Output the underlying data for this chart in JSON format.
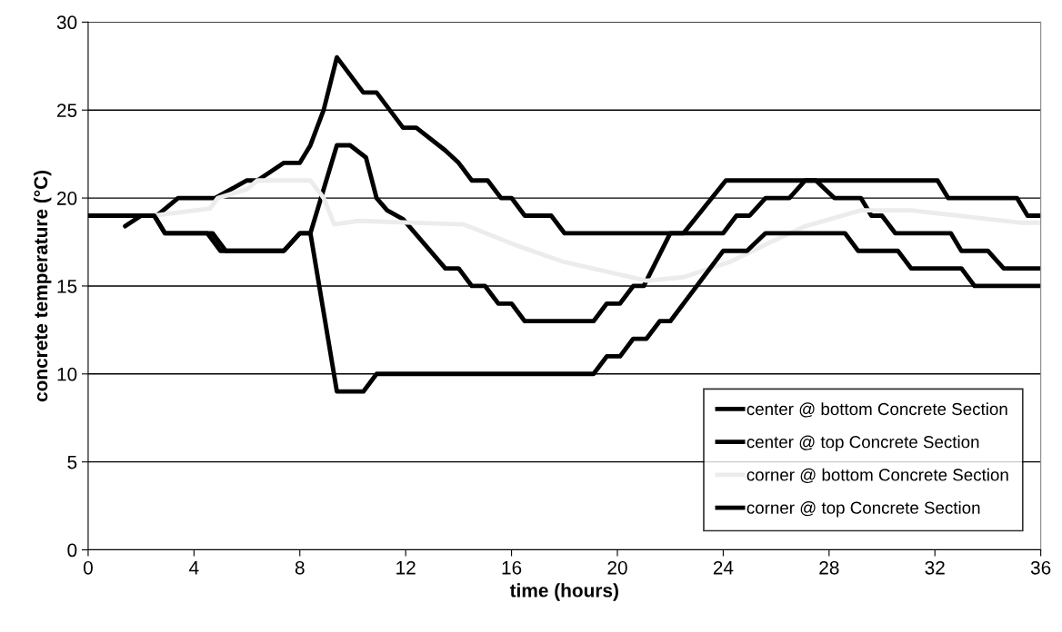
{
  "chart_data": {
    "type": "line",
    "xlabel": "time (hours)",
    "ylabel": "concrete temperature (°C)",
    "xlim": [
      0,
      36
    ],
    "xticks": [
      0,
      4,
      8,
      12,
      16,
      20,
      24,
      28,
      32,
      36
    ],
    "ylim": [
      0,
      30
    ],
    "yticks": [
      0,
      5,
      10,
      15,
      20,
      25,
      30
    ],
    "grid": "y",
    "legend": "bottom right",
    "marker": "none",
    "line_style": "solid",
    "series": [
      {
        "name": "center @ bottom Concrete Section",
        "color": "#000000",
        "x": [
          1.4,
          2.0,
          2.6,
          3.4,
          4.8,
          6.0,
          6.4,
          7.4,
          8.0,
          8.4,
          8.9,
          9.4,
          10.4,
          10.9,
          11.9,
          12.4,
          13.5,
          14.0,
          14.5,
          15.1,
          15.6,
          16.0,
          16.5,
          17.5,
          18.0,
          24.0,
          24.5,
          25.0,
          25.6,
          26.5,
          27.1,
          27.5,
          28.2,
          29.2,
          29.6,
          30.0,
          30.5,
          32.6,
          33.0,
          34.0,
          34.6,
          36.0
        ],
        "values": [
          18.4,
          19,
          19,
          20,
          20,
          21,
          21,
          22,
          22,
          23,
          25,
          28,
          26,
          26,
          24,
          24,
          22.7,
          22,
          21,
          21,
          20,
          20,
          19,
          19,
          18,
          18,
          19,
          19,
          20,
          20,
          21,
          21,
          20,
          20,
          19,
          19,
          18,
          18,
          17,
          17,
          16,
          16
        ]
      },
      {
        "name": "center @ top Concrete Section",
        "color": "#000000",
        "x": [
          0,
          2.5,
          2.9,
          4.5,
          5.0,
          7.4,
          8.0,
          8.4,
          9.4,
          9.9,
          10.5,
          10.9,
          11.3,
          11.9,
          13.5,
          14.0,
          14.5,
          15.0,
          15.5,
          16.0,
          16.5,
          19.1,
          19.6,
          20.1,
          20.6,
          21.0,
          22.0,
          22.5,
          24.1,
          32.1,
          32.5,
          35.1,
          35.5,
          36.0
        ],
        "values": [
          19,
          19,
          18,
          18,
          17,
          17,
          18,
          18,
          23,
          23,
          22.3,
          20,
          19.3,
          18.8,
          16,
          16,
          15,
          15,
          14,
          14,
          13,
          13,
          14,
          14,
          15,
          15,
          18,
          18,
          21,
          21,
          20,
          20,
          19,
          19
        ]
      },
      {
        "name": "corner @ bottom Concrete Section",
        "color": "#ececec",
        "x": [
          0,
          2.5,
          4.6,
          4.9,
          6.0,
          6.4,
          8.4,
          8.9,
          9.3,
          10.2,
          14.2,
          16.2,
          17.9,
          21.1,
          22.5,
          24.3,
          25.8,
          27.1,
          29.2,
          31.1,
          35.2,
          36.0
        ],
        "values": [
          19,
          19,
          19.4,
          20,
          20.5,
          21,
          21,
          20,
          18.5,
          18.7,
          18.5,
          17.3,
          16.4,
          15.3,
          15.5,
          16.4,
          17.5,
          18.4,
          19.3,
          19.3,
          18.6,
          18.6
        ]
      },
      {
        "name": "corner @ top Concrete Section",
        "color": "#000000",
        "x": [
          0,
          2.5,
          2.9,
          4.7,
          5.2,
          7.4,
          8.0,
          8.4,
          9.4,
          10.4,
          10.9,
          19.1,
          19.6,
          20.1,
          20.6,
          21.1,
          21.6,
          22.0,
          23.0,
          24.0,
          24.9,
          25.6,
          28.6,
          29.1,
          30.6,
          31.1,
          33.0,
          33.5,
          36.0
        ],
        "values": [
          19,
          19,
          18,
          18,
          17,
          17,
          18,
          18,
          9,
          9,
          10,
          10,
          11,
          11,
          12,
          12,
          13,
          13,
          15,
          17,
          17,
          18,
          18,
          17,
          17,
          16,
          16,
          15,
          15
        ]
      }
    ]
  }
}
